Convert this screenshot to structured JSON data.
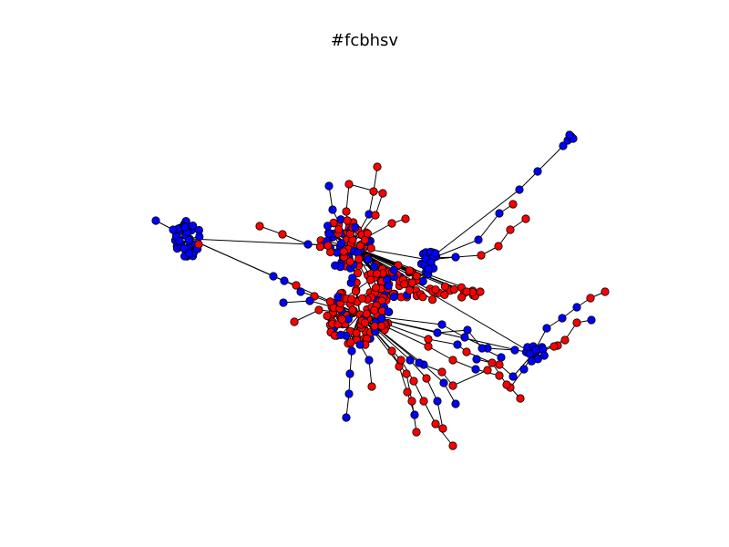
{
  "title": "#fcbhsv",
  "colors": {
    "group_a": "#0000ff",
    "group_b": "#ff0000",
    "edge": "#000000",
    "node_outline": "#000000",
    "background": "#ffffff"
  },
  "graph": {
    "type": "network",
    "node_groups": [
      "group_a",
      "group_b"
    ]
  }
}
